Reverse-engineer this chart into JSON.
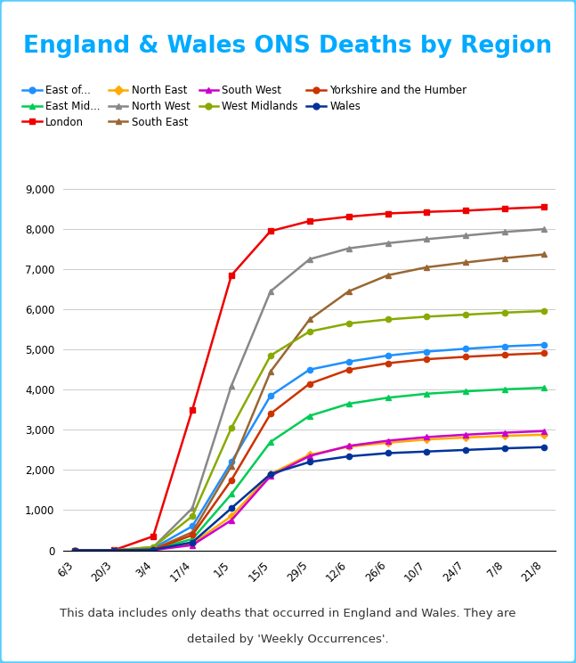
{
  "title": "England & Wales ONS Deaths by Region",
  "title_color": "#00aaff",
  "background_color": "#ffffff",
  "border_color": "#55ccff",
  "footer_line1": "This data includes only deaths that occurred in England and Wales. They are",
  "footer_line2": "detailed by 'Weekly Occurrences'.",
  "x_labels": [
    "6/3",
    "20/3",
    "3/4",
    "17/4",
    "1/5",
    "15/5",
    "29/5",
    "12/6",
    "26/6",
    "10/7",
    "24/7",
    "7/8",
    "21/8"
  ],
  "ylim": [
    0,
    9000
  ],
  "yticks": [
    0,
    1000,
    2000,
    3000,
    4000,
    5000,
    6000,
    7000,
    8000,
    9000
  ],
  "series": [
    {
      "label": "East of...",
      "color": "#1e90ff",
      "marker": "o",
      "values": [
        0,
        0,
        50,
        600,
        2200,
        3850,
        4500,
        4700,
        4850,
        4950,
        5020,
        5080,
        5120
      ]
    },
    {
      "label": "East Mid...",
      "color": "#00cc55",
      "marker": "^",
      "values": [
        0,
        0,
        20,
        280,
        1400,
        2700,
        3350,
        3650,
        3800,
        3900,
        3960,
        4010,
        4050
      ]
    },
    {
      "label": "London",
      "color": "#ee0000",
      "marker": "s",
      "values": [
        0,
        5,
        350,
        3500,
        6850,
        7950,
        8200,
        8310,
        8390,
        8430,
        8460,
        8510,
        8550
      ]
    },
    {
      "label": "North East",
      "color": "#ffaa00",
      "marker": "D",
      "values": [
        0,
        0,
        5,
        170,
        850,
        1900,
        2380,
        2580,
        2680,
        2760,
        2810,
        2850,
        2880
      ]
    },
    {
      "label": "North West",
      "color": "#888888",
      "marker": "^",
      "values": [
        0,
        0,
        80,
        1050,
        4100,
        6450,
        7250,
        7520,
        7650,
        7750,
        7840,
        7930,
        8000
      ]
    },
    {
      "label": "South East",
      "color": "#996633",
      "marker": "^",
      "values": [
        0,
        0,
        25,
        450,
        2100,
        4450,
        5750,
        6450,
        6850,
        7050,
        7170,
        7280,
        7370
      ]
    },
    {
      "label": "South West",
      "color": "#cc00cc",
      "marker": "^",
      "values": [
        0,
        0,
        5,
        130,
        750,
        1850,
        2350,
        2600,
        2730,
        2820,
        2880,
        2930,
        2970
      ]
    },
    {
      "label": "West Midlands",
      "color": "#88aa00",
      "marker": "o",
      "values": [
        0,
        0,
        80,
        850,
        3050,
        4850,
        5450,
        5650,
        5750,
        5820,
        5870,
        5920,
        5960
      ]
    },
    {
      "label": "Yorkshire and the Humber",
      "color": "#cc3300",
      "marker": "o",
      "values": [
        0,
        0,
        15,
        380,
        1750,
        3400,
        4150,
        4500,
        4660,
        4760,
        4820,
        4870,
        4910
      ]
    },
    {
      "label": "Wales",
      "color": "#003399",
      "marker": "o",
      "values": [
        0,
        0,
        15,
        200,
        1050,
        1900,
        2200,
        2340,
        2420,
        2460,
        2500,
        2540,
        2570
      ]
    }
  ]
}
